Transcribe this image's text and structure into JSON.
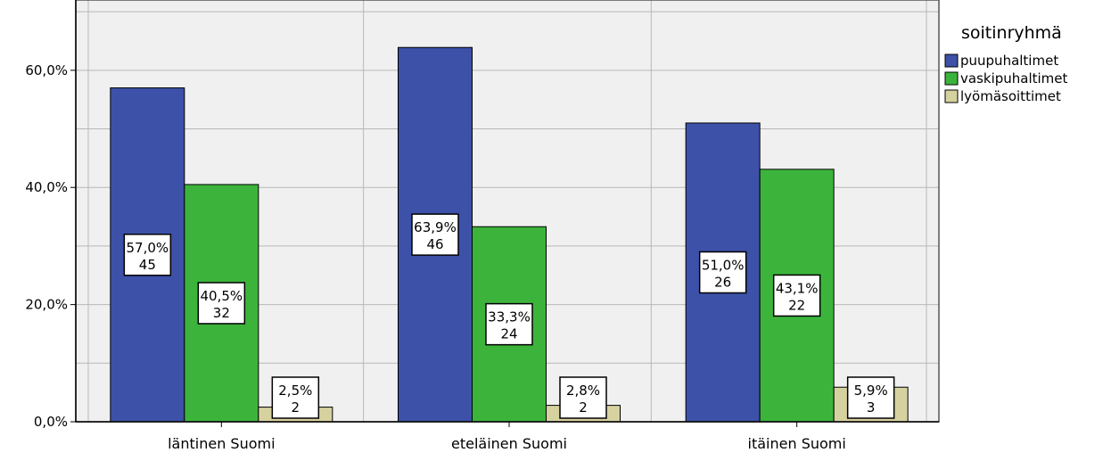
{
  "chart_data": {
    "type": "bar",
    "categories": [
      "läntinen Suomi",
      "eteläinen Suomi",
      "itäinen Suomi"
    ],
    "series": [
      {
        "name": "puupuhaltimet",
        "color": "#3d51a8",
        "values": [
          57.0,
          63.9,
          51.0
        ],
        "counts": [
          45,
          46,
          26
        ],
        "labels": [
          "57,0%",
          "63,9%",
          "51,0%"
        ],
        "count_labels": [
          "45",
          "46",
          "26"
        ]
      },
      {
        "name": "vaskipuhaltimet",
        "color": "#3cb43c",
        "values": [
          40.5,
          33.3,
          43.1
        ],
        "counts": [
          32,
          24,
          22
        ],
        "labels": [
          "40,5%",
          "33,3%",
          "43,1%"
        ],
        "count_labels": [
          "32",
          "24",
          "22"
        ]
      },
      {
        "name": "lyömäsoittimet",
        "color": "#d6d2a0",
        "values": [
          2.5,
          2.8,
          5.9
        ],
        "counts": [
          2,
          2,
          3
        ],
        "labels": [
          "2,5%",
          "2,8%",
          "5,9%"
        ],
        "count_labels": [
          "2",
          "2",
          "3"
        ]
      }
    ],
    "ylim": [
      0,
      72
    ],
    "yticks": [
      0,
      20,
      40,
      60
    ],
    "ytick_labels": [
      "0,0%",
      "20,0%",
      "40,0%",
      "60,0%"
    ],
    "legend": {
      "title": "soitinryhmä",
      "position": "right"
    },
    "grid": true,
    "plot_background": "#f0f0f0"
  }
}
